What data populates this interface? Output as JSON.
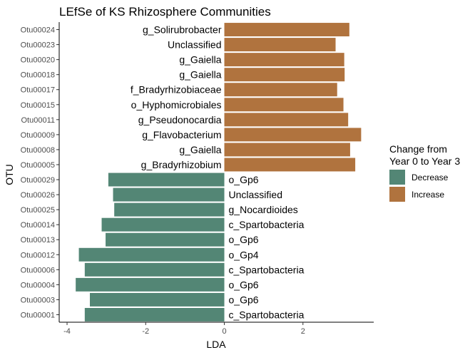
{
  "chart_data": {
    "type": "bar",
    "orientation": "horizontal",
    "title": "LEfSe of KS Rhizosphere Communities",
    "xlabel": "LDA",
    "ylabel": "OTU",
    "xlim": [
      -4.2,
      3.8
    ],
    "xticks": [
      -4,
      -2,
      0,
      2
    ],
    "grid": false,
    "legend": {
      "title_line1": "Change from",
      "title_line2": "Year 0 to Year 3",
      "placement": "right",
      "items": [
        {
          "label": "Decrease",
          "color": "#538675"
        },
        {
          "label": "Increase",
          "color": "#b0733e"
        }
      ]
    },
    "bars": [
      {
        "otu": "Otu00024",
        "taxon": "g_Solirubrobacter",
        "value": 3.18,
        "group": "Increase"
      },
      {
        "otu": "Otu00023",
        "taxon": "Unclassified",
        "value": 2.83,
        "group": "Increase"
      },
      {
        "otu": "Otu00020",
        "taxon": "g_Gaiella",
        "value": 3.05,
        "group": "Increase"
      },
      {
        "otu": "Otu00018",
        "taxon": "g_Gaiella",
        "value": 3.06,
        "group": "Increase"
      },
      {
        "otu": "Otu00017",
        "taxon": "f_Bradyrhizobiaceae",
        "value": 2.87,
        "group": "Increase"
      },
      {
        "otu": "Otu00015",
        "taxon": "o_Hyphomicrobiales",
        "value": 3.03,
        "group": "Increase"
      },
      {
        "otu": "Otu00011",
        "taxon": "g_Pseudonocardia",
        "value": 3.15,
        "group": "Increase"
      },
      {
        "otu": "Otu00009",
        "taxon": "g_Flavobacterium",
        "value": 3.48,
        "group": "Increase"
      },
      {
        "otu": "Otu00008",
        "taxon": "g_Gaiella",
        "value": 3.2,
        "group": "Increase"
      },
      {
        "otu": "Otu00005",
        "taxon": "g_Bradyrhizobium",
        "value": 3.33,
        "group": "Increase"
      },
      {
        "otu": "Otu00029",
        "taxon": "o_Gp6",
        "value": -2.95,
        "group": "Decrease"
      },
      {
        "otu": "Otu00026",
        "taxon": "Unclassified",
        "value": -2.83,
        "group": "Decrease"
      },
      {
        "otu": "Otu00025",
        "taxon": "g_Nocardioides",
        "value": -2.8,
        "group": "Decrease"
      },
      {
        "otu": "Otu00014",
        "taxon": "c_Spartobacteria",
        "value": -3.12,
        "group": "Decrease"
      },
      {
        "otu": "Otu00013",
        "taxon": "o_Gp6",
        "value": -3.02,
        "group": "Decrease"
      },
      {
        "otu": "Otu00012",
        "taxon": "o_Gp4",
        "value": -3.7,
        "group": "Decrease"
      },
      {
        "otu": "Otu00006",
        "taxon": "c_Spartobacteria",
        "value": -3.55,
        "group": "Decrease"
      },
      {
        "otu": "Otu00004",
        "taxon": "o_Gp6",
        "value": -3.78,
        "group": "Decrease"
      },
      {
        "otu": "Otu00003",
        "taxon": "o_Gp6",
        "value": -3.42,
        "group": "Decrease"
      },
      {
        "otu": "Otu00001",
        "taxon": "c_Spartobacteria",
        "value": -3.55,
        "group": "Decrease"
      }
    ]
  }
}
